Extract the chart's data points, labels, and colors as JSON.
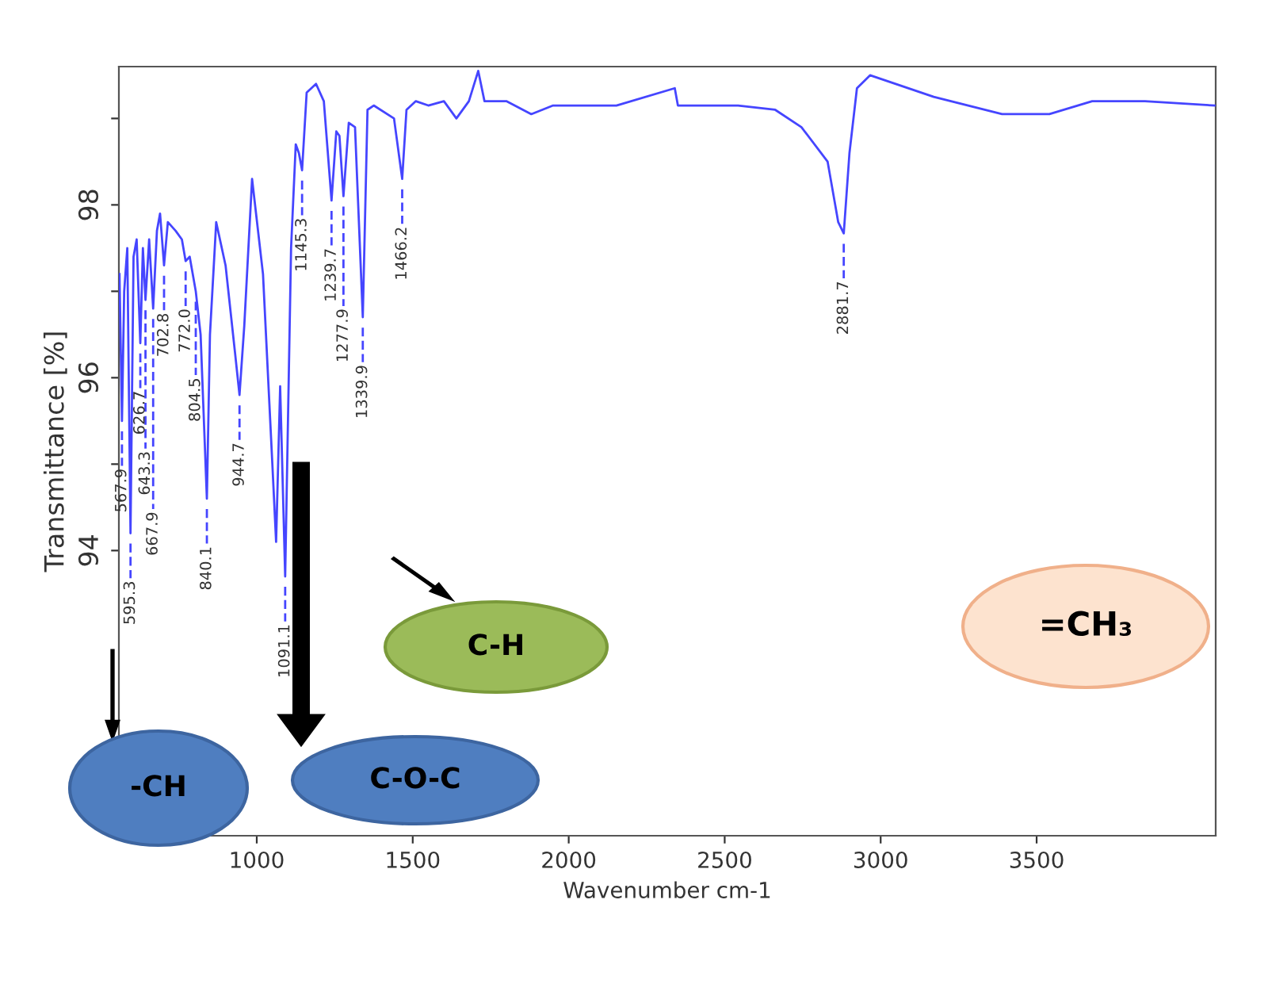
{
  "chart_data": {
    "type": "line",
    "xlabel": "Wavenumber cm-1",
    "ylabel": "Transmittance [%]",
    "color": "#4545ff",
    "x": [
      560,
      567.9,
      575,
      585,
      595.3,
      605,
      615,
      626.7,
      635,
      643.3,
      655,
      667.9,
      680,
      690,
      702.8,
      715,
      740,
      760,
      772.0,
      785,
      804.5,
      820,
      840.1,
      850,
      870,
      900,
      930,
      944.7,
      960,
      985,
      1020,
      1050,
      1062,
      1075,
      1091.1,
      1110,
      1125,
      1135,
      1145.3,
      1160,
      1190,
      1215,
      1239.7,
      1255,
      1265,
      1277.9,
      1295,
      1315,
      1339.9,
      1355,
      1375,
      1440,
      1466.2,
      1480,
      1510,
      1550,
      1600,
      1640,
      1680,
      1710,
      1730,
      1800,
      1880,
      1950,
      2153,
      2340,
      2350,
      2543,
      2662,
      2746,
      2830,
      2864,
      2881.7,
      2900,
      2924,
      2966,
      3170,
      3389,
      3541,
      3678,
      3847,
      4070
    ],
    "values": [
      97.2,
      95.5,
      97.0,
      97.5,
      94.2,
      97.4,
      97.6,
      96.4,
      97.5,
      96.9,
      97.6,
      96.8,
      97.7,
      97.9,
      97.3,
      97.8,
      97.7,
      97.6,
      97.35,
      97.4,
      97.0,
      96.5,
      94.6,
      96.5,
      97.8,
      97.3,
      96.3,
      95.8,
      96.6,
      98.3,
      97.2,
      95.0,
      94.1,
      95.9,
      93.7,
      97.5,
      98.7,
      98.6,
      98.4,
      99.3,
      99.4,
      99.2,
      98.05,
      98.85,
      98.8,
      98.1,
      98.95,
      98.9,
      96.7,
      99.1,
      99.15,
      99.0,
      98.3,
      99.1,
      99.2,
      99.15,
      99.2,
      99.0,
      99.2,
      99.55,
      99.2,
      99.2,
      99.05,
      99.15,
      99.15,
      99.35,
      99.15,
      99.15,
      99.1,
      98.9,
      98.5,
      97.8,
      97.67,
      98.6,
      99.35,
      99.5,
      99.25,
      99.05,
      99.05,
      99.2,
      99.2,
      99.15
    ],
    "xlim": [
      558,
      4074
    ],
    "xticks": [
      1000,
      1500,
      2000,
      2500,
      3000,
      3500
    ],
    "ylim": [
      90.7,
      99.6
    ],
    "yticks": [
      94,
      {
        "value": 95,
        "label": null
      },
      96,
      {
        "value": 97,
        "label": null
      },
      98,
      {
        "value": 99,
        "label": null
      }
    ],
    "annotations": [
      {
        "text": "567.9",
        "x": 567.9,
        "y": 95.5
      },
      {
        "text": "595.3",
        "x": 595.3,
        "y": 94.2
      },
      {
        "text": "626.7",
        "x": 626.7,
        "y": 96.4
      },
      {
        "text": "643.3",
        "x": 643.3,
        "y": 96.9
      },
      {
        "text": "667.9",
        "x": 667.9,
        "y": 96.8
      },
      {
        "text": "702.8",
        "x": 702.8,
        "y": 97.3
      },
      {
        "text": "772.0",
        "x": 772.0,
        "y": 97.35
      },
      {
        "text": "804.5",
        "x": 804.5,
        "y": 97.0
      },
      {
        "text": "840.1",
        "x": 840.1,
        "y": 94.6
      },
      {
        "text": "944.7",
        "x": 944.7,
        "y": 95.8
      },
      {
        "text": "1091.1",
        "x": 1091.1,
        "y": 93.7
      },
      {
        "text": "1145.3",
        "x": 1145.3,
        "y": 98.4
      },
      {
        "text": "1239.7",
        "x": 1239.7,
        "y": 98.05
      },
      {
        "text": "1277.9",
        "x": 1277.9,
        "y": 98.1
      },
      {
        "text": "1339.9",
        "x": 1339.9,
        "y": 96.7
      },
      {
        "text": "1466.2",
        "x": 1466.2,
        "y": 98.3
      },
      {
        "text": "2881.7",
        "x": 2881.7,
        "y": 97.67
      },
      "-CH",
      "C-O-C",
      "C-H",
      "=CH₃"
    ]
  }
}
